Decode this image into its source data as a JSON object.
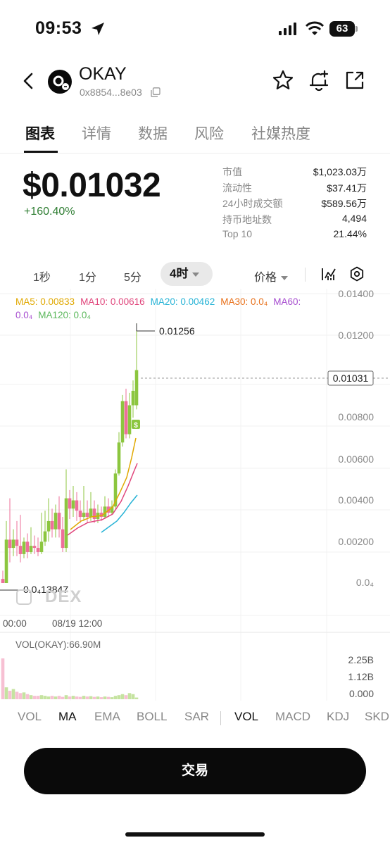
{
  "status_bar": {
    "time": "09:53",
    "battery": "63"
  },
  "header": {
    "token_name": "OKAY",
    "token_address": "0x8854...8e03",
    "logo_letter": "O"
  },
  "tabs": [
    {
      "label": "图表",
      "active": true
    },
    {
      "label": "详情",
      "active": false
    },
    {
      "label": "数据",
      "active": false
    },
    {
      "label": "风险",
      "active": false
    },
    {
      "label": "社媒热度",
      "active": false
    }
  ],
  "price": {
    "current": "$0.01032",
    "change": "+160.40%"
  },
  "stats": [
    {
      "label": "市值",
      "value": "$1,023.03万"
    },
    {
      "label": "流动性",
      "value": "$37.41万"
    },
    {
      "label": "24小时成交额",
      "value": "$589.56万"
    },
    {
      "label": "持币地址数",
      "value": "4,494"
    },
    {
      "label": "Top 10",
      "value": "21.44%"
    }
  ],
  "toolbar": {
    "intervals": [
      "1秒",
      "1分",
      "5分"
    ],
    "selected_interval": "4时",
    "price_mode": "价格"
  },
  "ma_legend": [
    {
      "label": "MA5: 0.00833",
      "color": "#e0a800"
    },
    {
      "label": "MA10: 0.00616",
      "color": "#e0457b"
    },
    {
      "label": "MA20: 0.00462",
      "color": "#27b3d6"
    },
    {
      "label": "MA30: 0.0₄",
      "color": "#e8701a"
    },
    {
      "label": "MA60: 0.0₄",
      "color": "#a64ccf"
    },
    {
      "label": "MA120: 0.0₄",
      "color": "#5cb85c"
    }
  ],
  "chart_data": {
    "type": "candlestick",
    "y_axis_ticks": [
      "0.01400",
      "0.01200",
      "0.01031",
      "0.00800",
      "0.00600",
      "0.00400",
      "0.00200",
      "0.0₄"
    ],
    "x_axis_ticks": [
      "00:00",
      "08/19 12:00"
    ],
    "high_label": "0.01256",
    "low_label": "0.0₄13847",
    "current_price_label": "0.01031",
    "ylim": [
      0,
      0.014
    ],
    "candles": [
      {
        "o": 0.0002,
        "c": 0.0,
        "h": 0.0006,
        "l": 0.0
      },
      {
        "o": 0.0,
        "c": 0.0021,
        "h": 0.003,
        "l": 0.0
      },
      {
        "o": 0.0021,
        "c": 0.0017,
        "h": 0.0041,
        "l": 0.001
      },
      {
        "o": 0.0017,
        "c": 0.0021,
        "h": 0.0026,
        "l": 0.0013
      },
      {
        "o": 0.0021,
        "c": 0.0018,
        "h": 0.003,
        "l": 0.0013
      },
      {
        "o": 0.0018,
        "c": 0.0014,
        "h": 0.0033,
        "l": 0.001
      },
      {
        "o": 0.0014,
        "c": 0.002,
        "h": 0.0022,
        "l": 0.0012
      },
      {
        "o": 0.002,
        "c": 0.0015,
        "h": 0.0024,
        "l": 0.0012
      },
      {
        "o": 0.0015,
        "c": 0.0018,
        "h": 0.0027,
        "l": 0.0014
      },
      {
        "o": 0.0018,
        "c": 0.0017,
        "h": 0.0023,
        "l": 0.0014
      },
      {
        "o": 0.0017,
        "c": 0.0015,
        "h": 0.0022,
        "l": 0.0013
      },
      {
        "o": 0.0015,
        "c": 0.002,
        "h": 0.0034,
        "l": 0.0014
      },
      {
        "o": 0.002,
        "c": 0.0025,
        "h": 0.0035,
        "l": 0.0018
      },
      {
        "o": 0.0025,
        "c": 0.003,
        "h": 0.0041,
        "l": 0.002
      },
      {
        "o": 0.003,
        "c": 0.0026,
        "h": 0.0036,
        "l": 0.0022
      },
      {
        "o": 0.0026,
        "c": 0.0034,
        "h": 0.0038,
        "l": 0.0022
      },
      {
        "o": 0.0034,
        "c": 0.0026,
        "h": 0.0042,
        "l": 0.0022
      },
      {
        "o": 0.0026,
        "c": 0.0017,
        "h": 0.0032,
        "l": 0.0015
      },
      {
        "o": 0.0017,
        "c": 0.0041,
        "h": 0.0055,
        "l": 0.0015
      },
      {
        "o": 0.0041,
        "c": 0.0036,
        "h": 0.0045,
        "l": 0.0031
      },
      {
        "o": 0.0036,
        "c": 0.004,
        "h": 0.0047,
        "l": 0.0032
      },
      {
        "o": 0.004,
        "c": 0.0035,
        "h": 0.0044,
        "l": 0.003
      },
      {
        "o": 0.0035,
        "c": 0.0032,
        "h": 0.004,
        "l": 0.0029
      },
      {
        "o": 0.0032,
        "c": 0.0034,
        "h": 0.0047,
        "l": 0.003
      },
      {
        "o": 0.0034,
        "c": 0.0032,
        "h": 0.004,
        "l": 0.0029
      },
      {
        "o": 0.0032,
        "c": 0.0036,
        "h": 0.0044,
        "l": 0.003
      },
      {
        "o": 0.0036,
        "c": 0.0031,
        "h": 0.004,
        "l": 0.0029
      },
      {
        "o": 0.0031,
        "c": 0.0034,
        "h": 0.0038,
        "l": 0.0029
      },
      {
        "o": 0.0034,
        "c": 0.0032,
        "h": 0.0037,
        "l": 0.003
      },
      {
        "o": 0.0032,
        "c": 0.0037,
        "h": 0.0042,
        "l": 0.0031
      },
      {
        "o": 0.0037,
        "c": 0.0034,
        "h": 0.0041,
        "l": 0.0032
      },
      {
        "o": 0.0034,
        "c": 0.0037,
        "h": 0.004,
        "l": 0.0033
      },
      {
        "o": 0.0037,
        "c": 0.0053,
        "h": 0.0055,
        "l": 0.0036
      },
      {
        "o": 0.0053,
        "c": 0.0068,
        "h": 0.0073,
        "l": 0.0052
      },
      {
        "o": 0.0068,
        "c": 0.0088,
        "h": 0.0091,
        "l": 0.0066
      },
      {
        "o": 0.0088,
        "c": 0.0072,
        "h": 0.0094,
        "l": 0.007
      },
      {
        "o": 0.0072,
        "c": 0.0086,
        "h": 0.0092,
        "l": 0.007
      },
      {
        "o": 0.0086,
        "c": 0.0093,
        "h": 0.0098,
        "l": 0.008
      },
      {
        "o": 0.0086,
        "c": 0.0103,
        "h": 0.01256,
        "l": 0.0084
      }
    ],
    "volumes": [
      1.2,
      0.35,
      0.25,
      0.3,
      0.22,
      0.18,
      0.2,
      0.15,
      0.12,
      0.1,
      0.1,
      0.12,
      0.1,
      0.08,
      0.1,
      0.08,
      0.1,
      0.07,
      0.12,
      0.08,
      0.1,
      0.08,
      0.07,
      0.1,
      0.08,
      0.09,
      0.07,
      0.08,
      0.06,
      0.08,
      0.07,
      0.06,
      0.1,
      0.12,
      0.15,
      0.12,
      0.18,
      0.15,
      0.05
    ],
    "volume_ticks": [
      "2.25B",
      "1.12B",
      "0.000"
    ]
  },
  "volume_label": "VOL(OKAY):66.90M",
  "watermark": "DEX",
  "indicator_tabs": [
    {
      "label": "VOL",
      "active": false
    },
    {
      "label": "MA",
      "active": true
    },
    {
      "label": "EMA",
      "active": false
    },
    {
      "label": "BOLL",
      "active": false
    },
    {
      "label": "SAR",
      "active": false
    },
    {
      "label": "VOL",
      "active": true
    },
    {
      "label": "MACD",
      "active": false
    },
    {
      "label": "KDJ",
      "active": false
    },
    {
      "label": "SKD...",
      "active": false
    }
  ],
  "trade_button": {
    "label": "交易"
  },
  "colors": {
    "up": "#8cc63f",
    "down": "#ee6f9a",
    "positive": "#2e7d32"
  }
}
